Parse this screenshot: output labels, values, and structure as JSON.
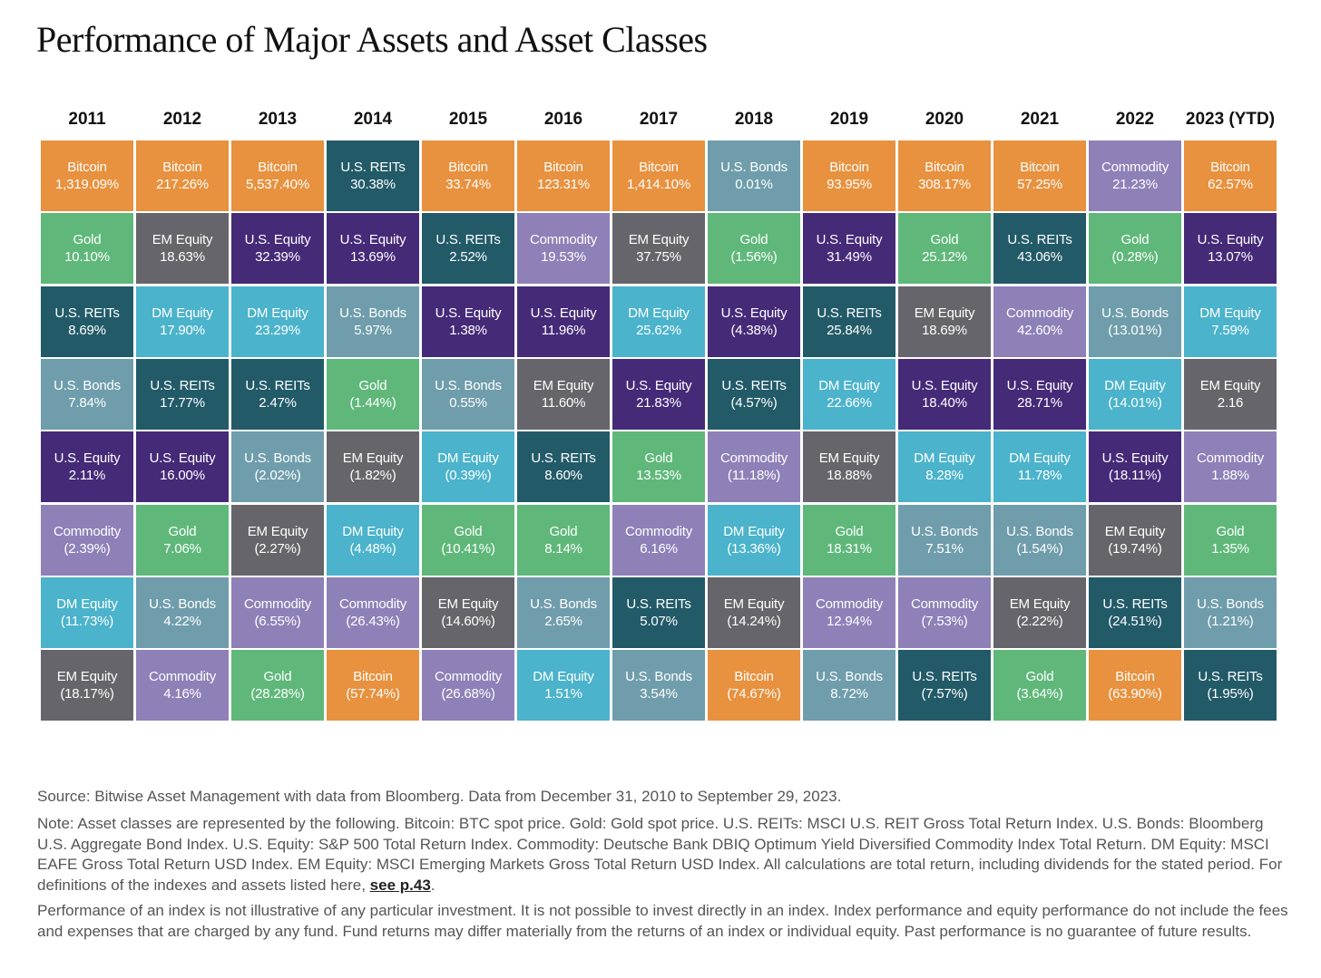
{
  "title": "Performance of Major Assets and Asset Classes",
  "colors": {
    "Bitcoin": "#E8913E",
    "Gold": "#5FB87A",
    "U.S. REITs": "#225A68",
    "U.S. Bonds": "#6F9DAB",
    "U.S. Equity": "#452A78",
    "DM Equity": "#4BB3CB",
    "EM Equity": "#65656B",
    "Commodity": "#8F80B8"
  },
  "chart_data": {
    "type": "table",
    "title": "Performance of Major Assets and Asset Classes",
    "years": [
      "2011",
      "2012",
      "2013",
      "2014",
      "2015",
      "2016",
      "2017",
      "2018",
      "2019",
      "2020",
      "2021",
      "2022",
      "2023 (YTD)"
    ],
    "columns": [
      [
        [
          "Bitcoin",
          "1,319.09%"
        ],
        [
          "Gold",
          "10.10%"
        ],
        [
          "U.S. REITs",
          "8.69%"
        ],
        [
          "U.S. Bonds",
          "7.84%"
        ],
        [
          "U.S. Equity",
          "2.11%"
        ],
        [
          "Commodity",
          "(2.39%)"
        ],
        [
          "DM Equity",
          "(11.73%)"
        ],
        [
          "EM Equity",
          "(18.17%)"
        ]
      ],
      [
        [
          "Bitcoin",
          "217.26%"
        ],
        [
          "EM Equity",
          "18.63%"
        ],
        [
          "DM Equity",
          "17.90%"
        ],
        [
          "U.S. REITs",
          "17.77%"
        ],
        [
          "U.S. Equity",
          "16.00%"
        ],
        [
          "Gold",
          "7.06%"
        ],
        [
          "U.S. Bonds",
          "4.22%"
        ],
        [
          "Commodity",
          "4.16%"
        ]
      ],
      [
        [
          "Bitcoin",
          "5,537.40%"
        ],
        [
          "U.S. Equity",
          "32.39%"
        ],
        [
          "DM Equity",
          "23.29%"
        ],
        [
          "U.S. REITs",
          "2.47%"
        ],
        [
          "U.S. Bonds",
          "(2.02%)"
        ],
        [
          "EM Equity",
          "(2.27%)"
        ],
        [
          "Commodity",
          "(6.55%)"
        ],
        [
          "Gold",
          "(28.28%)"
        ]
      ],
      [
        [
          "U.S. REITs",
          "30.38%"
        ],
        [
          "U.S. Equity",
          "13.69%"
        ],
        [
          "U.S. Bonds",
          "5.97%"
        ],
        [
          "Gold",
          "(1.44%)"
        ],
        [
          "EM Equity",
          "(1.82%)"
        ],
        [
          "DM Equity",
          "(4.48%)"
        ],
        [
          "Commodity",
          "(26.43%)"
        ],
        [
          "Bitcoin",
          "(57.74%)"
        ]
      ],
      [
        [
          "Bitcoin",
          "33.74%"
        ],
        [
          "U.S. REITs",
          "2.52%"
        ],
        [
          "U.S. Equity",
          "1.38%"
        ],
        [
          "U.S. Bonds",
          "0.55%"
        ],
        [
          "DM Equity",
          "(0.39%)"
        ],
        [
          "Gold",
          "(10.41%)"
        ],
        [
          "EM Equity",
          "(14.60%)"
        ],
        [
          "Commodity",
          "(26.68%)"
        ]
      ],
      [
        [
          "Bitcoin",
          "123.31%"
        ],
        [
          "Commodity",
          "19.53%"
        ],
        [
          "U.S. Equity",
          "11.96%"
        ],
        [
          "EM Equity",
          "11.60%"
        ],
        [
          "U.S. REITs",
          "8.60%"
        ],
        [
          "Gold",
          "8.14%"
        ],
        [
          "U.S. Bonds",
          "2.65%"
        ],
        [
          "DM Equity",
          "1.51%"
        ]
      ],
      [
        [
          "Bitcoin",
          "1,414.10%"
        ],
        [
          "EM Equity",
          "37.75%"
        ],
        [
          "DM Equity",
          "25.62%"
        ],
        [
          "U.S. Equity",
          "21.83%"
        ],
        [
          "Gold",
          "13.53%"
        ],
        [
          "Commodity",
          "6.16%"
        ],
        [
          "U.S. REITs",
          "5.07%"
        ],
        [
          "U.S. Bonds",
          "3.54%"
        ]
      ],
      [
        [
          "U.S. Bonds",
          "0.01%"
        ],
        [
          "Gold",
          "(1.56%)"
        ],
        [
          "U.S. Equity",
          "(4.38%)"
        ],
        [
          "U.S. REITs",
          "(4.57%)"
        ],
        [
          "Commodity",
          "(11.18%)"
        ],
        [
          "DM Equity",
          "(13.36%)"
        ],
        [
          "EM Equity",
          "(14.24%)"
        ],
        [
          "Bitcoin",
          "(74.67%)"
        ]
      ],
      [
        [
          "Bitcoin",
          "93.95%"
        ],
        [
          "U.S. Equity",
          "31.49%"
        ],
        [
          "U.S. REITs",
          "25.84%"
        ],
        [
          "DM Equity",
          "22.66%"
        ],
        [
          "EM Equity",
          "18.88%"
        ],
        [
          "Gold",
          "18.31%"
        ],
        [
          "Commodity",
          "12.94%"
        ],
        [
          "U.S. Bonds",
          "8.72%"
        ]
      ],
      [
        [
          "Bitcoin",
          "308.17%"
        ],
        [
          "Gold",
          "25.12%"
        ],
        [
          "EM Equity",
          "18.69%"
        ],
        [
          "U.S. Equity",
          "18.40%"
        ],
        [
          "DM Equity",
          "8.28%"
        ],
        [
          "U.S. Bonds",
          "7.51%"
        ],
        [
          "Commodity",
          "(7.53%)"
        ],
        [
          "U.S. REITs",
          "(7.57%)"
        ]
      ],
      [
        [
          "Bitcoin",
          "57.25%"
        ],
        [
          "U.S. REITs",
          "43.06%"
        ],
        [
          "Commodity",
          "42.60%"
        ],
        [
          "U.S. Equity",
          "28.71%"
        ],
        [
          "DM Equity",
          "11.78%"
        ],
        [
          "U.S. Bonds",
          "(1.54%)"
        ],
        [
          "EM Equity",
          "(2.22%)"
        ],
        [
          "Gold",
          "(3.64%)"
        ]
      ],
      [
        [
          "Commodity",
          "21.23%"
        ],
        [
          "Gold",
          "(0.28%)"
        ],
        [
          "U.S. Bonds",
          "(13.01%)"
        ],
        [
          "DM Equity",
          "(14.01%)"
        ],
        [
          "U.S. Equity",
          "(18.11%)"
        ],
        [
          "EM Equity",
          "(19.74%)"
        ],
        [
          "U.S. REITs",
          "(24.51%)"
        ],
        [
          "Bitcoin",
          "(63.90%)"
        ]
      ],
      [
        [
          "Bitcoin",
          "62.57%"
        ],
        [
          "U.S. Equity",
          "13.07%"
        ],
        [
          "DM Equity",
          "7.59%"
        ],
        [
          "EM Equity",
          "2.16"
        ],
        [
          "Commodity",
          "1.88%"
        ],
        [
          "Gold",
          "1.35%"
        ],
        [
          "U.S. Bonds",
          "(1.21%)"
        ],
        [
          "U.S. REITs",
          "(1.95%)"
        ]
      ]
    ]
  },
  "footer": {
    "source": "Source: Bitwise Asset Management with data from Bloomberg. Data from December 31, 2010 to September 29, 2023.",
    "note": "Note: Asset classes are represented by the following. Bitcoin: BTC spot price. Gold: Gold spot price. U.S. REITs: MSCI U.S. REIT Gross Total Return Index. U.S. Bonds: Bloomberg U.S. Aggregate Bond Index. U.S. Equity: S&P 500 Total Return Index. Commodity: Deutsche Bank DBIQ Optimum Yield Diversified Commodity Index Total Return. DM Equity: MSCI EAFE Gross Total Return USD Index. EM Equity: MSCI Emerging Markets Gross Total Return USD Index. All calculations are total return, including dividends for the stated period. For definitions of the indexes and assets listed here, ",
    "note_link": "see p.43",
    "note_end": ".",
    "disclaimer": "Performance of an index is not illustrative of any particular investment. It is not possible to invest directly in an index. Index performance and equity performance do not include the fees and expenses that are charged by any fund. Fund returns may differ materially from the returns of an index or individual equity. Past performance is no guarantee of future results."
  }
}
